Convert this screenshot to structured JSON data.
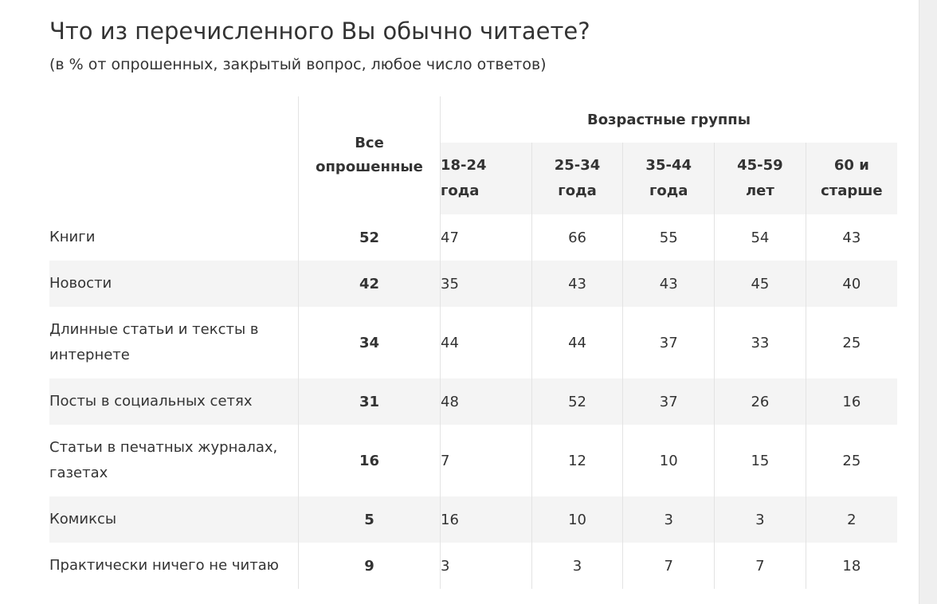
{
  "title": "Что из перечисленного Вы обычно читаете?",
  "subtitle": "(в % от опрошенных, закрытый вопрос, любое число ответов)",
  "table": {
    "total_header": [
      "Все",
      "опрошенные"
    ],
    "age_groups_header": "Возрастные группы",
    "age_groups": [
      [
        "18-24",
        "года"
      ],
      [
        "25-34",
        "года"
      ],
      [
        "35-44",
        "года"
      ],
      [
        "45-59",
        "лет"
      ],
      [
        "60 и",
        "старше"
      ]
    ],
    "rows": [
      {
        "label": [
          "Книги"
        ],
        "total": "52",
        "values": [
          "47",
          "66",
          "55",
          "54",
          "43"
        ]
      },
      {
        "label": [
          "Новости"
        ],
        "total": "42",
        "values": [
          "35",
          "43",
          "43",
          "45",
          "40"
        ]
      },
      {
        "label": [
          "Длинные статьи и тексты в",
          "интернете"
        ],
        "total": "34",
        "values": [
          "44",
          "44",
          "37",
          "33",
          "25"
        ]
      },
      {
        "label": [
          "Посты в социальных сетях"
        ],
        "total": "31",
        "values": [
          "48",
          "52",
          "37",
          "26",
          "16"
        ]
      },
      {
        "label": [
          "Статьи в печатных журналах,",
          "газетах"
        ],
        "total": "16",
        "values": [
          "7",
          "12",
          "10",
          "15",
          "25"
        ]
      },
      {
        "label": [
          "Комиксы"
        ],
        "total": "5",
        "values": [
          "16",
          "10",
          "3",
          "3",
          "2"
        ]
      },
      {
        "label": [
          "Практически ничего не читаю"
        ],
        "total": "9",
        "values": [
          "3",
          "3",
          "7",
          "7",
          "18"
        ]
      }
    ]
  }
}
